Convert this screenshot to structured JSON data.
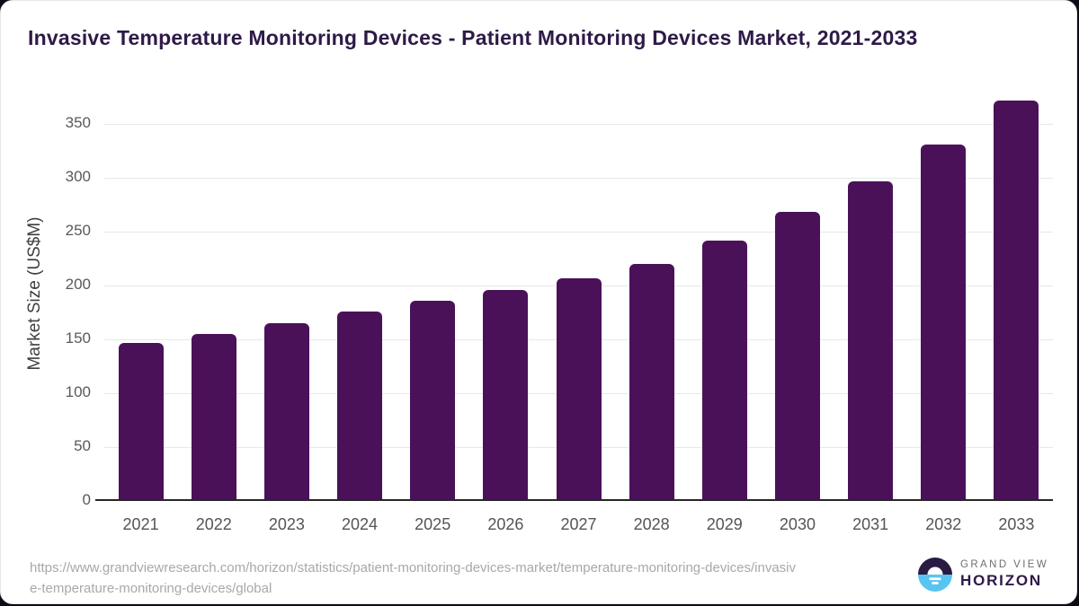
{
  "title": "Invasive Temperature Monitoring Devices - Patient Monitoring Devices Market, 2021-2033",
  "chart_data": {
    "type": "bar",
    "title": "Invasive Temperature Monitoring Devices - Patient Monitoring Devices Market, 2021-2033",
    "categories": [
      "2021",
      "2022",
      "2023",
      "2024",
      "2025",
      "2026",
      "2027",
      "2028",
      "2029",
      "2030",
      "2031",
      "2032",
      "2033"
    ],
    "values": [
      147,
      155,
      165,
      176,
      186,
      196,
      207,
      220,
      242,
      268,
      297,
      331,
      372
    ],
    "xlabel": "",
    "ylabel": "Market Size (US$M)",
    "ylim": [
      0,
      385
    ],
    "yticks": [
      0,
      50,
      100,
      150,
      200,
      250,
      300,
      350
    ],
    "grid": true,
    "legend": "none",
    "bar_color": "#4A1159"
  },
  "source": {
    "line1": "https://www.grandviewresearch.com/horizon/statistics/patient-monitoring-devices-market/temperature-monitoring-devices/invasiv",
    "line2": "e-temperature-monitoring-devices/global"
  },
  "logo": {
    "brand_top": "GRAND VIEW",
    "brand_bottom": "HORIZON"
  },
  "colors": {
    "bar": "#4A1159",
    "title_text": "#2E1A47",
    "axis_line": "#262626",
    "gridline": "#E8E8E8",
    "tick_text": "#58595B",
    "axis_label_text": "#3F3F41",
    "source_text": "#A8A8A8",
    "logo_gray": "#6E6F72",
    "logo_purple": "#2E1A47",
    "logo_circle_top": "#2B1B42",
    "logo_circle_bottom": "#58C5F1"
  }
}
